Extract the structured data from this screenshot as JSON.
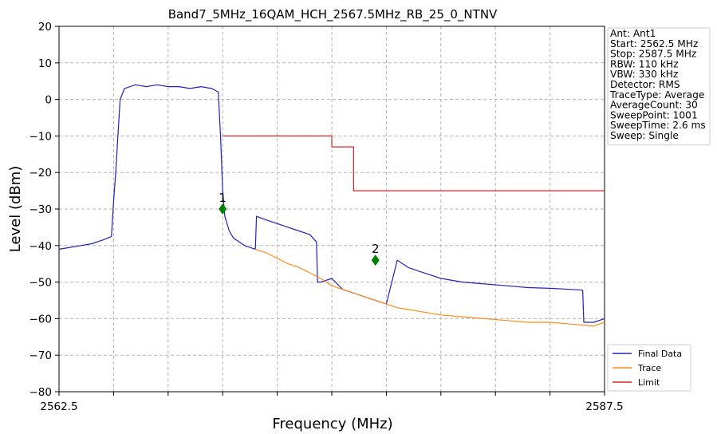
{
  "chart_data": {
    "type": "line",
    "title": "Band7_5MHz_16QAM_HCH_2567.5MHz_RB_25_0_NTNV",
    "xlabel": "Frequency (MHz)",
    "ylabel": "Level (dBm)",
    "xlim": [
      2562.5,
      2587.5
    ],
    "ylim": [
      -80,
      20
    ],
    "x_tick_labels": [
      {
        "value": 2562.5,
        "label": "2562.5"
      },
      {
        "value": 2587.5,
        "label": "2587.5"
      }
    ],
    "x_minor_ticks": [
      2565,
      2567.5,
      2570,
      2572.5,
      2575,
      2577.5,
      2580,
      2582.5,
      2585
    ],
    "y_ticks": [
      20,
      10,
      0,
      -10,
      -20,
      -30,
      -40,
      -50,
      -60,
      -70,
      -80
    ],
    "grid": true,
    "info_box": [
      "Ant: Ant1",
      "Start: 2562.5 MHz",
      "Stop: 2587.5 MHz",
      "RBW: 110 kHz",
      "VBW: 330 kHz",
      "Detector: RMS",
      "TraceType: Average",
      "AverageCount: 30",
      "SweepPoint: 1001",
      "SweepTime: 2.6 ms",
      "Sweep: Single"
    ],
    "legend_position": "bottom-right",
    "series": [
      {
        "name": "Final Data",
        "color": "#2222bb",
        "x": [
          2562.5,
          2563.0,
          2563.5,
          2564.0,
          2564.5,
          2564.9,
          2565.0,
          2565.1,
          2565.3,
          2565.5,
          2566.0,
          2566.5,
          2567.0,
          2567.5,
          2568.0,
          2568.5,
          2569.0,
          2569.5,
          2569.8,
          2569.9,
          2570.0,
          2570.1,
          2570.2,
          2570.3,
          2570.5,
          2571.0,
          2571.5,
          2571.55,
          2572.0,
          2572.5,
          2573.0,
          2573.5,
          2574.0,
          2574.3,
          2574.35,
          2574.5,
          2575.0,
          2575.5,
          2576.0,
          2576.5,
          2577.0,
          2577.5,
          2578.0,
          2578.5,
          2579.0,
          2579.5,
          2580.0,
          2581.0,
          2582.0,
          2583.0,
          2584.0,
          2585.0,
          2586.0,
          2586.5,
          2586.55,
          2587.0,
          2587.5
        ],
        "y": [
          -41,
          -40.5,
          -40,
          -39.5,
          -38.5,
          -37.5,
          -28,
          -20,
          0,
          3,
          4,
          3.5,
          4,
          3.5,
          3.5,
          3.0,
          3.5,
          3,
          2,
          -10,
          -25,
          -32,
          -34,
          -36,
          -38,
          -40,
          -41,
          -32,
          -33,
          -34,
          -35,
          -36,
          -37,
          -39,
          -50,
          -50,
          -49,
          -52,
          -53,
          -54,
          -55,
          -56,
          -44,
          -46,
          -47,
          -48,
          -49,
          -50,
          -50.5,
          -51,
          -51.5,
          -51.7,
          -52,
          -52.2,
          -61,
          -61,
          -60
        ]
      },
      {
        "name": "Trace",
        "color": "#ff8c1a",
        "x": [
          2571.5,
          2572.0,
          2572.5,
          2573.0,
          2573.5,
          2574.0,
          2574.5,
          2575.0,
          2576.0,
          2577.0,
          2578.0,
          2579.0,
          2580.0,
          2581.0,
          2582.0,
          2583.0,
          2584.0,
          2585.0,
          2586.0,
          2587.0,
          2587.5
        ],
        "y": [
          -41,
          -42,
          -43.5,
          -45,
          -46,
          -47.5,
          -49,
          -51,
          -53,
          -55,
          -57,
          -58,
          -59,
          -59.5,
          -60,
          -60.5,
          -61,
          -61,
          -61.5,
          -62,
          -61
        ]
      },
      {
        "name": "Limit",
        "color": "#dd2222",
        "x": [
          2570.0,
          2575.0,
          2575.0,
          2576.0,
          2576.0,
          2587.5
        ],
        "y": [
          -10,
          -10,
          -13,
          -13,
          -25,
          -25
        ]
      }
    ],
    "markers": [
      {
        "label": "1",
        "x": 2570.0,
        "y": -30,
        "color": "#008000"
      },
      {
        "label": "2",
        "x": 2577.0,
        "y": -44,
        "color": "#008000"
      }
    ]
  }
}
